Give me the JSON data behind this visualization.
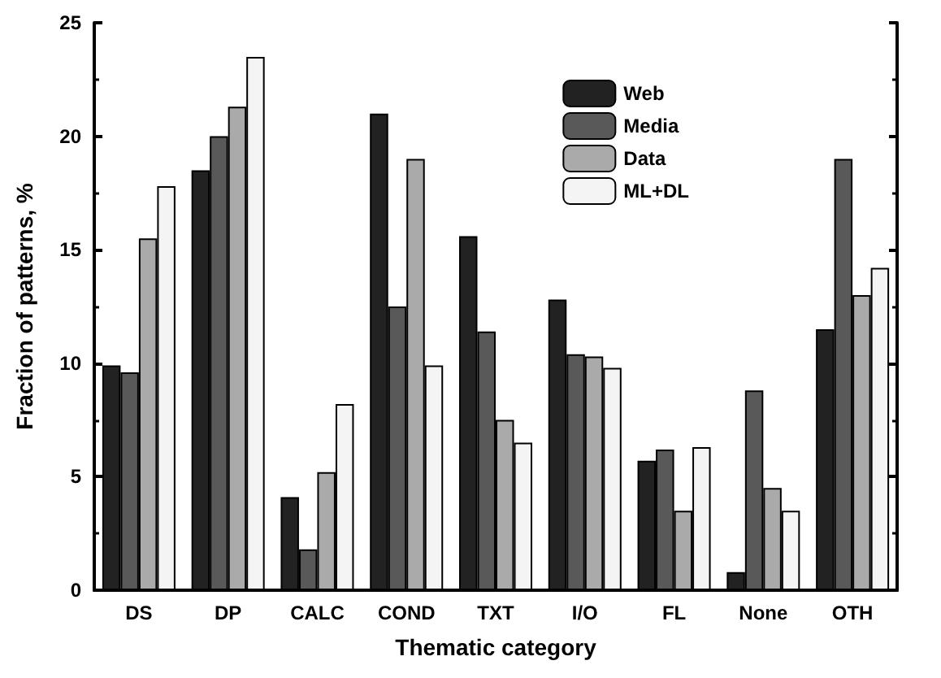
{
  "chart_data": {
    "type": "bar",
    "xlabel": "Thematic category",
    "ylabel": "Fraction of patterns, %",
    "categories": [
      "DS",
      "DP",
      "CALC",
      "COND",
      "TXT",
      "I/O",
      "FL",
      "None",
      "OTH"
    ],
    "series": [
      {
        "name": "Web",
        "color": "#222222",
        "values": [
          9.9,
          18.5,
          4.1,
          21.0,
          15.6,
          12.8,
          5.7,
          0.8,
          11.5
        ]
      },
      {
        "name": "Media",
        "color": "#595959",
        "values": [
          9.6,
          20.0,
          1.8,
          12.5,
          11.4,
          10.4,
          6.2,
          8.8,
          19.0
        ]
      },
      {
        "name": "Data",
        "color": "#aaaaaa",
        "values": [
          15.5,
          21.3,
          5.2,
          19.0,
          7.5,
          10.3,
          3.5,
          4.5,
          13.0
        ]
      },
      {
        "name": "ML+DL",
        "color": "#f4f4f4",
        "values": [
          17.8,
          23.5,
          8.2,
          9.9,
          6.5,
          9.8,
          6.3,
          3.5,
          14.2
        ]
      }
    ],
    "ylim": [
      0,
      25
    ],
    "yticks": [
      0,
      5,
      10,
      15,
      20,
      25
    ],
    "grid": false,
    "legend": "top right"
  }
}
